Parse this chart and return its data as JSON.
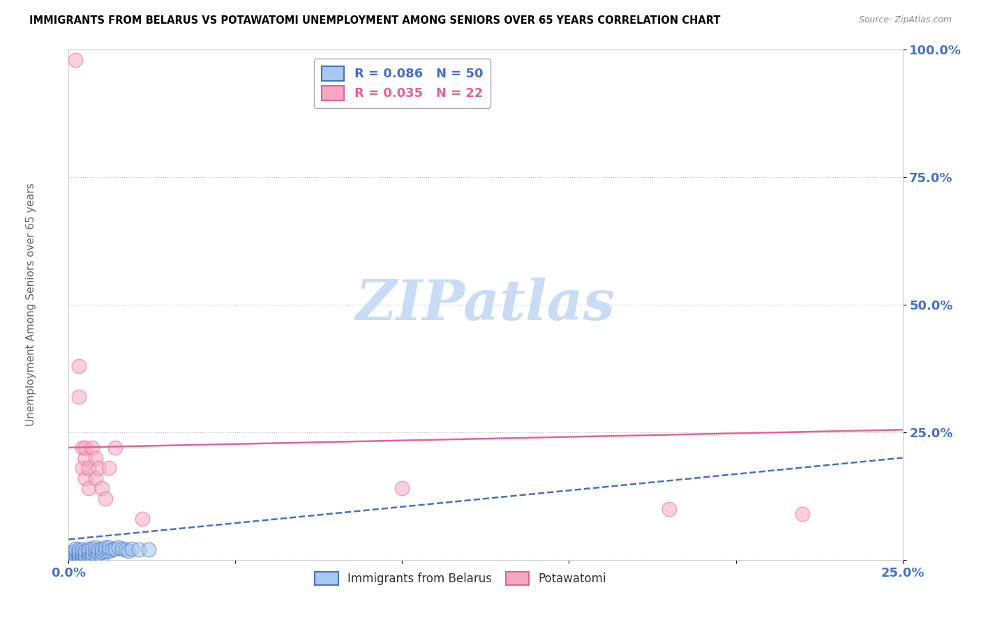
{
  "title": "IMMIGRANTS FROM BELARUS VS POTAWATOMI UNEMPLOYMENT AMONG SENIORS OVER 65 YEARS CORRELATION CHART",
  "source": "Source: ZipAtlas.com",
  "ylabel": "Unemployment Among Seniors over 65 years",
  "xlim": [
    0.0,
    0.25
  ],
  "ylim": [
    0.0,
    1.0
  ],
  "xticks": [
    0.0,
    0.05,
    0.1,
    0.15,
    0.2,
    0.25
  ],
  "yticks": [
    0.0,
    0.25,
    0.5,
    0.75,
    1.0
  ],
  "xtick_labels": [
    "0.0%",
    "",
    "",
    "",
    "",
    "25.0%"
  ],
  "ytick_labels": [
    "",
    "25.0%",
    "50.0%",
    "75.0%",
    "100.0%"
  ],
  "blue_R": 0.086,
  "blue_N": 50,
  "pink_R": 0.035,
  "pink_N": 22,
  "blue_color": "#A8C8F0",
  "pink_color": "#F4A8C0",
  "blue_line_color": "#4472C4",
  "pink_line_color": "#E8609A",
  "watermark_color": "#C8DCF5",
  "blue_x": [
    0.001,
    0.001,
    0.001,
    0.001,
    0.001,
    0.002,
    0.002,
    0.002,
    0.002,
    0.002,
    0.003,
    0.003,
    0.003,
    0.003,
    0.003,
    0.004,
    0.004,
    0.004,
    0.004,
    0.005,
    0.005,
    0.005,
    0.006,
    0.006,
    0.006,
    0.006,
    0.007,
    0.007,
    0.007,
    0.008,
    0.008,
    0.008,
    0.009,
    0.009,
    0.01,
    0.01,
    0.01,
    0.011,
    0.011,
    0.012,
    0.012,
    0.013,
    0.014,
    0.015,
    0.016,
    0.017,
    0.018,
    0.019,
    0.021,
    0.024
  ],
  "blue_y": [
    0.005,
    0.008,
    0.01,
    0.012,
    0.015,
    0.005,
    0.008,
    0.012,
    0.018,
    0.022,
    0.005,
    0.008,
    0.01,
    0.015,
    0.02,
    0.006,
    0.009,
    0.014,
    0.02,
    0.006,
    0.01,
    0.018,
    0.008,
    0.012,
    0.018,
    0.022,
    0.008,
    0.014,
    0.022,
    0.01,
    0.018,
    0.025,
    0.012,
    0.02,
    0.008,
    0.015,
    0.022,
    0.018,
    0.025,
    0.018,
    0.025,
    0.02,
    0.022,
    0.025,
    0.022,
    0.02,
    0.018,
    0.022,
    0.02,
    0.02
  ],
  "pink_x": [
    0.002,
    0.003,
    0.003,
    0.004,
    0.004,
    0.005,
    0.005,
    0.005,
    0.006,
    0.006,
    0.007,
    0.008,
    0.008,
    0.009,
    0.01,
    0.011,
    0.012,
    0.014,
    0.022,
    0.1,
    0.18,
    0.22
  ],
  "pink_y": [
    0.98,
    0.38,
    0.32,
    0.22,
    0.18,
    0.2,
    0.16,
    0.22,
    0.18,
    0.14,
    0.22,
    0.16,
    0.2,
    0.18,
    0.14,
    0.12,
    0.18,
    0.22,
    0.08,
    0.14,
    0.1,
    0.09
  ],
  "blue_trend_x": [
    0.0,
    0.25
  ],
  "blue_trend_y": [
    0.04,
    0.2
  ],
  "pink_trend_x": [
    0.0,
    0.25
  ],
  "pink_trend_y": [
    0.22,
    0.255
  ],
  "legend_blue_label": "R = 0.086   N = 50",
  "legend_pink_label": "R = 0.035   N = 22",
  "legend_blue_series": "Immigrants from Belarus",
  "legend_pink_series": "Potawatomi"
}
